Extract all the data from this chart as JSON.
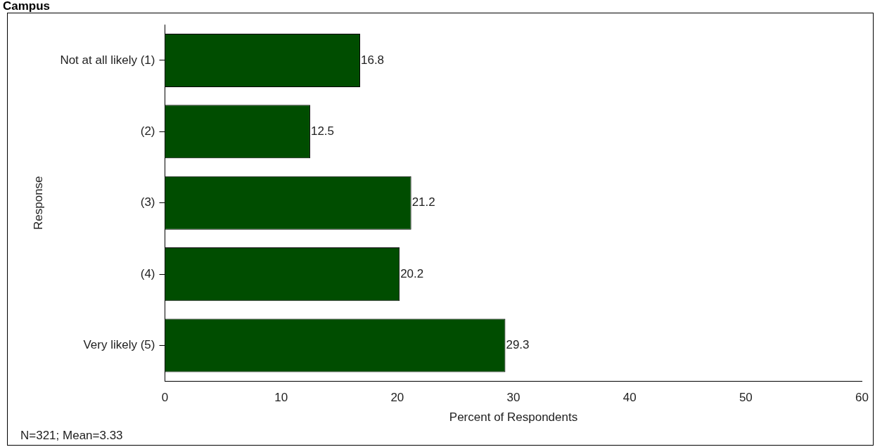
{
  "chart_data": {
    "type": "bar",
    "orientation": "horizontal",
    "title": "Campus",
    "categories": [
      "Not at all likely (1)",
      "(2)",
      "(3)",
      "(4)",
      "Very likely (5)"
    ],
    "values": [
      16.8,
      12.5,
      21.2,
      20.2,
      29.3
    ],
    "color": "#004d00",
    "xlim": [
      0,
      60
    ],
    "xticks": [
      0,
      10,
      20,
      30,
      40,
      50,
      60
    ],
    "xlabel": "Percent of Respondents",
    "ylabel": "Response",
    "data_labels": true,
    "grid": false,
    "legend": false,
    "annotations": [
      "N=321; Mean=3.33"
    ]
  }
}
